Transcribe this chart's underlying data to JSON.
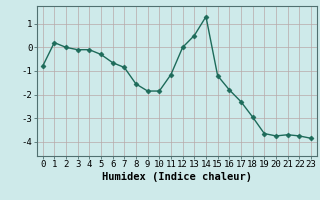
{
  "x": [
    0,
    1,
    2,
    3,
    4,
    5,
    6,
    7,
    8,
    9,
    10,
    11,
    12,
    13,
    14,
    15,
    16,
    17,
    18,
    19,
    20,
    21,
    22,
    23
  ],
  "y": [
    -0.8,
    0.2,
    0.0,
    -0.1,
    -0.1,
    -0.3,
    -0.65,
    -0.85,
    -1.55,
    -1.85,
    -1.85,
    -1.15,
    0.0,
    0.5,
    1.3,
    -1.2,
    -1.8,
    -2.3,
    -2.95,
    -3.65,
    -3.75,
    -3.7,
    -3.75,
    -3.85
  ],
  "line_color": "#1d6b5a",
  "marker": "D",
  "marker_size": 2.5,
  "line_width": 1.0,
  "xlabel": "Humidex (Indice chaleur)",
  "xlabel_fontsize": 7.5,
  "xlabel_fontweight": "bold",
  "yticks": [
    -4,
    -3,
    -2,
    -1,
    0,
    1
  ],
  "xlim": [
    -0.5,
    23.5
  ],
  "ylim": [
    -4.6,
    1.75
  ],
  "bg_color": "#ceeaea",
  "grid_color_major": "#b8a8a8",
  "grid_color_minor": "#ccc0c0",
  "tick_fontsize": 6.5,
  "xticks": [
    0,
    1,
    2,
    3,
    4,
    5,
    6,
    7,
    8,
    9,
    10,
    11,
    12,
    13,
    14,
    15,
    16,
    17,
    18,
    19,
    20,
    21,
    22,
    23
  ]
}
